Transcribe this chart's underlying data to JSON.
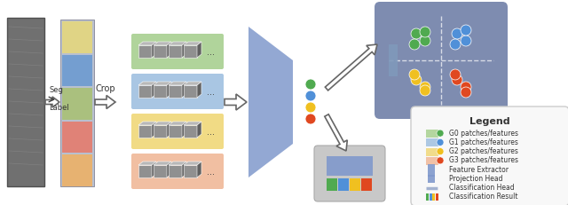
{
  "bg_color": "#ffffff",
  "colors": {
    "green_bg": "#a8d090",
    "blue_bg": "#a0c0e0",
    "yellow_bg": "#f0d878",
    "orange_bg": "#f0b898",
    "dot_green": "#50aa50",
    "dot_blue": "#5090d8",
    "dot_yellow": "#f0c020",
    "dot_orange": "#e04820",
    "extractor_blue": "#8099cc",
    "scatter_bg": "#7080a8",
    "legend_bg": "#f8f8f8",
    "bar_green": "#50aa50",
    "bar_blue": "#5090d8",
    "bar_yellow": "#f0c020",
    "bar_orange": "#e04820",
    "cube_face": "#909090",
    "cube_dark": "#606060",
    "cube_light": "#b8b8b8",
    "xray_gray": "#888888",
    "seg_bg": "#c0c8d8",
    "cls_bg": "#c8c8c8",
    "proj_rect": "#8099cc"
  },
  "legend_items": [
    {
      "label": "G0 patches/features",
      "color_rect": "#a8d090",
      "dot": "#50aa50"
    },
    {
      "label": "G1 patches/features",
      "color_rect": "#a0c0e0",
      "dot": "#5090d8"
    },
    {
      "label": "G2 patches/features",
      "color_rect": "#f0d878",
      "dot": "#f0c020"
    },
    {
      "label": "G3 patches/features",
      "color_rect": "#f0b898",
      "dot": "#e04820"
    },
    {
      "label": "Feature Extractor",
      "type": "tall_rect",
      "color": "#8099cc"
    },
    {
      "label": "Projection Head",
      "type": "short_rect",
      "color": "#8099cc"
    },
    {
      "label": "Classification Head",
      "type": "line",
      "color": "#9aabcc"
    },
    {
      "label": "Classification Result",
      "type": "multibar",
      "colors": [
        "#50aa50",
        "#5090d8",
        "#f0c020",
        "#e04820"
      ]
    }
  ]
}
